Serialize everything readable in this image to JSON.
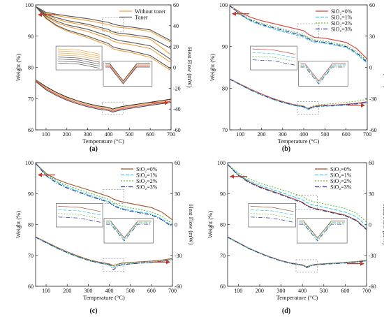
{
  "chart_data": [
    {
      "panel": "(a)",
      "type": "line",
      "xlabel": "Temperature (°C)",
      "ylabel_left": "Weight (%)",
      "ylabel_right": "Heat Flow (mW)",
      "xlim": [
        50,
        700
      ],
      "ylim_left": [
        60,
        100
      ],
      "ylim_right": [
        -60,
        60
      ],
      "xticks": [
        100,
        200,
        300,
        400,
        500,
        600,
        700
      ],
      "yticks_left": [
        60,
        70,
        80,
        90,
        100
      ],
      "yticks_right": [
        -60,
        -40,
        -20,
        0,
        20,
        40,
        60
      ],
      "legend": [
        "Without toner",
        "Toner"
      ],
      "legend_position": "top-right",
      "tga_x": [
        50,
        100,
        150,
        200,
        300,
        400,
        420,
        450,
        500,
        600,
        700
      ],
      "tga_series": [
        {
          "color": "#f0a040",
          "legend_index": 0,
          "values": [
            99.5,
            97.3,
            96.6,
            96.0,
            95.0,
            93.7,
            93.2,
            92.8,
            92.5,
            91.5,
            88.0
          ]
        },
        {
          "color": "#f0a040",
          "values": [
            99.5,
            96.8,
            95.4,
            94.5,
            93.3,
            91.5,
            90.8,
            90.3,
            90.0,
            89.0,
            84.0
          ]
        },
        {
          "color": "#f0a040",
          "values": [
            99.5,
            96.2,
            94.3,
            93.1,
            91.5,
            89.2,
            88.4,
            87.8,
            87.4,
            86.0,
            81.5
          ]
        },
        {
          "color": "#f0a040",
          "values": [
            99.5,
            95.6,
            93.2,
            91.6,
            89.5,
            87.0,
            86.0,
            85.4,
            84.9,
            83.2,
            79.0
          ]
        },
        {
          "color": "#555555",
          "legend_index": 1,
          "values": [
            99.5,
            97.6,
            97.0,
            96.5,
            95.6,
            94.4,
            93.9,
            93.4,
            93.0,
            92.0,
            88.5
          ]
        },
        {
          "color": "#555555",
          "values": [
            99.5,
            97.0,
            95.9,
            95.0,
            93.8,
            92.1,
            91.4,
            90.9,
            90.6,
            89.6,
            86.0
          ]
        },
        {
          "color": "#555555",
          "values": [
            99.5,
            96.5,
            94.8,
            93.6,
            92.2,
            90.0,
            89.2,
            88.6,
            88.1,
            86.9,
            82.5
          ]
        },
        {
          "color": "#555555",
          "values": [
            99.5,
            95.8,
            93.5,
            92.0,
            90.0,
            87.6,
            86.6,
            86.0,
            85.4,
            83.8,
            79.5
          ]
        }
      ],
      "dsc_x": [
        50,
        100,
        150,
        200,
        250,
        300,
        350,
        400,
        420,
        440,
        460,
        500,
        550,
        600,
        650,
        700
      ],
      "dsc_series": [
        {
          "color": "#222222",
          "values": [
            -12,
            -18.5,
            -24,
            -28.5,
            -32,
            -34.8,
            -37,
            -38.4,
            -40,
            -38.8,
            -37.8,
            -36.5,
            -35,
            -33.5,
            -32,
            -30.5
          ]
        },
        {
          "color": "#f0a040",
          "values": [
            -12.5,
            -19.5,
            -25,
            -29.5,
            -33,
            -35.8,
            -38,
            -39.4,
            -41,
            -39.8,
            -38.8,
            -37.5,
            -36,
            -34.5,
            -33,
            -31.5
          ]
        },
        {
          "color": "#e05050",
          "values": [
            -13,
            -20.5,
            -26,
            -30.5,
            -34,
            -36.8,
            -39,
            -40.4,
            -42,
            -40.8,
            -39.8,
            -38.5,
            -37,
            -35.5,
            -34,
            -32.5
          ]
        },
        {
          "color": "#444444",
          "values": [
            -13.5,
            -21.5,
            -27,
            -31.5,
            -35,
            -37.8,
            -40,
            -41.4,
            -43,
            -41.8,
            -40.8,
            -39.5,
            -38,
            -36.5,
            -35,
            -33.5
          ]
        }
      ]
    },
    {
      "panel": "(b)",
      "type": "line",
      "xlabel": "Temperature (°C)",
      "ylabel_left": "Weight (%)",
      "ylabel_right": "Heat Flow (mW)",
      "xlim": [
        50,
        700
      ],
      "ylim_left": [
        70,
        100
      ],
      "ylim_right": [
        -60,
        60
      ],
      "xticks": [
        100,
        200,
        300,
        400,
        500,
        600,
        700
      ],
      "yticks_left": [
        70,
        80,
        90,
        100
      ],
      "yticks_right": [
        -60,
        -30,
        0,
        30,
        60
      ],
      "legend": [
        "SiO₂=0%",
        "SiO₂=1%",
        "SiO₂=2%",
        "SiO₂=3%"
      ],
      "legend_position": "top-right",
      "tga_x": [
        50,
        100,
        150,
        200,
        300,
        400,
        420,
        450,
        500,
        600,
        650,
        700
      ],
      "tga_series": [
        {
          "color": "#e03c3c",
          "dash": "",
          "legend_index": 0,
          "values": [
            99.8,
            98.2,
            97.0,
            96.2,
            95.0,
            93.8,
            93.0,
            92.2,
            92.0,
            91.0,
            89.5,
            87.0
          ]
        },
        {
          "color": "#3cc8e6",
          "dash": "5,2",
          "legend_index": 1,
          "values": [
            99.8,
            97.6,
            96.1,
            95.1,
            93.6,
            92.3,
            91.6,
            91.0,
            90.8,
            89.8,
            88.2,
            86.0
          ]
        },
        {
          "color": "#5cbf3c",
          "dash": "2,2",
          "legend_index": 2,
          "values": [
            99.8,
            97.9,
            96.5,
            95.6,
            94.2,
            92.9,
            92.2,
            91.6,
            91.3,
            90.3,
            88.8,
            86.5
          ]
        },
        {
          "color": "#2a3a9a",
          "dash": "6,2,1,2",
          "legend_index": 3,
          "values": [
            99.8,
            97.7,
            96.3,
            95.3,
            93.9,
            92.6,
            91.9,
            91.3,
            91.0,
            90.0,
            88.5,
            86.2
          ]
        }
      ],
      "dsc_x": [
        50,
        100,
        150,
        200,
        250,
        300,
        350,
        400,
        420,
        440,
        460,
        500,
        550,
        600,
        650,
        700
      ],
      "dsc_series": [
        {
          "color": "#e03c3c",
          "dash": "",
          "values": [
            -11,
            -16,
            -21,
            -25.5,
            -29.5,
            -32.8,
            -35.5,
            -37.2,
            -39.5,
            -38,
            -37,
            -36.4,
            -36,
            -35.4,
            -34.4,
            -33
          ]
        },
        {
          "color": "#3cc8e6",
          "dash": "5,2",
          "values": [
            -11.5,
            -16.8,
            -22,
            -26.5,
            -30.5,
            -33.8,
            -36.5,
            -38.2,
            -40.5,
            -39,
            -38,
            -37.4,
            -37,
            -36.4,
            -35.4,
            -34
          ]
        },
        {
          "color": "#5cbf3c",
          "dash": "2,2",
          "values": [
            -11,
            -16.4,
            -21.5,
            -26,
            -30,
            -33.2,
            -35.8,
            -37.4,
            -39.2,
            -37.4,
            -36.2,
            -35.4,
            -34.6,
            -33.6,
            -32.3,
            -30.8
          ]
        },
        {
          "color": "#2a3a9a",
          "dash": "6,2,1,2",
          "values": [
            -11.3,
            -16.6,
            -21.8,
            -26.2,
            -30.2,
            -33.5,
            -36.1,
            -37.8,
            -40,
            -38.5,
            -37.5,
            -36.9,
            -36.5,
            -35.9,
            -34.9,
            -33.5
          ]
        }
      ]
    },
    {
      "panel": "(c)",
      "type": "line",
      "xlabel": "Temperature (°C)",
      "ylabel_left": "Weight (%)",
      "ylabel_right": "Heat Flow (mW)",
      "xlim": [
        50,
        700
      ],
      "ylim_left": [
        60,
        100
      ],
      "ylim_right": [
        -60,
        60
      ],
      "xticks": [
        100,
        200,
        300,
        400,
        500,
        600,
        700
      ],
      "yticks_left": [
        60,
        70,
        80,
        90,
        100
      ],
      "yticks_right": [
        -60,
        -30,
        0,
        30,
        60
      ],
      "legend": [
        "SiO₂=0%",
        "SiO₂=1%",
        "SiO₂=2%",
        "SiO₂=3%"
      ],
      "legend_position": "top-right",
      "tga_x": [
        50,
        100,
        150,
        200,
        300,
        400,
        420,
        450,
        500,
        600,
        650,
        700
      ],
      "tga_series": [
        {
          "color": "#a0522d",
          "dash": "",
          "legend_index": 0,
          "values": [
            99.8,
            96.5,
            94.6,
            93.3,
            91.2,
            89.0,
            88.2,
            87.5,
            86.8,
            85.5,
            84.0,
            81.5
          ]
        },
        {
          "color": "#3cc8e6",
          "dash": "5,2",
          "legend_index": 1,
          "values": [
            99.8,
            96.0,
            93.7,
            92.1,
            89.6,
            87.4,
            86.4,
            85.4,
            84.6,
            83.4,
            81.8,
            79.5
          ]
        },
        {
          "color": "#5cbf3c",
          "dash": "2,2",
          "legend_index": 2,
          "values": [
            99.8,
            96.3,
            94.1,
            92.6,
            90.3,
            88.1,
            87.1,
            86.1,
            85.4,
            84.1,
            82.6,
            80.2
          ]
        },
        {
          "color": "#2a3a9a",
          "dash": "6,2,1,2",
          "legend_index": 3,
          "values": [
            99.8,
            95.8,
            93.4,
            91.8,
            89.3,
            87.1,
            86.1,
            85.1,
            84.3,
            83.1,
            81.5,
            79.2
          ]
        }
      ],
      "dsc_x": [
        50,
        100,
        150,
        200,
        250,
        300,
        350,
        400,
        420,
        440,
        460,
        500,
        550,
        600,
        650,
        700
      ],
      "dsc_series": [
        {
          "color": "#a0522d",
          "dash": "",
          "values": [
            -12,
            -17,
            -22,
            -26.5,
            -30.5,
            -34,
            -36.5,
            -38.2,
            -40,
            -38.5,
            -37.5,
            -36.8,
            -36.2,
            -35.5,
            -34.5,
            -33
          ]
        },
        {
          "color": "#3cc8e6",
          "dash": "5,2",
          "values": [
            -12.5,
            -17.8,
            -23,
            -27.5,
            -31.5,
            -35,
            -37.5,
            -39.2,
            -42,
            -40,
            -39,
            -38.2,
            -37.5,
            -36.8,
            -35.8,
            -34
          ]
        },
        {
          "color": "#5cbf3c",
          "dash": "2,2",
          "values": [
            -12.2,
            -17.4,
            -22.5,
            -27,
            -31,
            -34.5,
            -37,
            -38.7,
            -41,
            -39.3,
            -38.3,
            -37.6,
            -37,
            -36.2,
            -35.2,
            -33.7
          ]
        },
        {
          "color": "#2a3a9a",
          "dash": "6,2,1,2",
          "values": [
            -12.4,
            -17.6,
            -22.8,
            -27.3,
            -31.3,
            -34.8,
            -37.3,
            -39,
            -44,
            -40.5,
            -39.2,
            -38.3,
            -37.5,
            -36.8,
            -35.8,
            -34
          ]
        }
      ]
    },
    {
      "panel": "(d)",
      "type": "line",
      "xlabel": "Temperature (°C)",
      "ylabel_left": "Weight (%)",
      "ylabel_right": "Heat Flow (mW)",
      "xlim": [
        50,
        700
      ],
      "ylim_left": [
        60,
        100
      ],
      "ylim_right": [
        -60,
        60
      ],
      "xticks": [
        100,
        200,
        300,
        400,
        500,
        600,
        700
      ],
      "yticks_left": [
        60,
        70,
        80,
        90,
        100
      ],
      "yticks_right": [
        -60,
        -30,
        0,
        30,
        60
      ],
      "legend": [
        "SiO₂=0%",
        "SiO₂=1%",
        "SiO₂=2%",
        "SiO₂=3%"
      ],
      "legend_position": "top-right",
      "tga_x": [
        50,
        100,
        150,
        200,
        300,
        400,
        420,
        450,
        500,
        600,
        650,
        700
      ],
      "tga_series": [
        {
          "color": "#a0522d",
          "dash": "",
          "legend_index": 0,
          "values": [
            99.5,
            96.0,
            93.8,
            92.2,
            89.8,
            87.2,
            86.2,
            85.3,
            84.6,
            83.0,
            81.5,
            78.5
          ]
        },
        {
          "color": "#3cc8e6",
          "dash": "5,2",
          "legend_index": 1,
          "values": [
            99.5,
            96.2,
            94.2,
            92.7,
            90.4,
            88.0,
            87.1,
            86.3,
            85.6,
            84.0,
            82.6,
            79.5
          ]
        },
        {
          "color": "#5cbf3c",
          "dash": "2,2",
          "legend_index": 2,
          "values": [
            99.5,
            96.6,
            94.8,
            93.4,
            91.3,
            89.1,
            88.2,
            87.4,
            86.7,
            85.2,
            83.8,
            80.8
          ]
        },
        {
          "color": "#2a3a9a",
          "dash": "6,2,1,2",
          "legend_index": 3,
          "values": [
            99.5,
            95.8,
            93.6,
            92.0,
            89.6,
            87.0,
            86.0,
            85.1,
            84.4,
            82.8,
            81.3,
            78.3
          ]
        }
      ],
      "dsc_x": [
        50,
        100,
        150,
        200,
        250,
        300,
        350,
        400,
        420,
        440,
        460,
        500,
        550,
        600,
        650,
        700
      ],
      "dsc_series": [
        {
          "color": "#a0522d",
          "dash": "",
          "values": [
            -12,
            -17.5,
            -23,
            -27.5,
            -31.5,
            -35,
            -37.5,
            -39.2,
            -41,
            -39.5,
            -38.7,
            -38,
            -37.4,
            -36.8,
            -36,
            -34.8
          ]
        },
        {
          "color": "#3cc8e6",
          "dash": "5,2",
          "values": [
            -12.3,
            -17.8,
            -23.3,
            -27.8,
            -31.8,
            -35.3,
            -37.8,
            -39.5,
            -41.5,
            -40,
            -39.2,
            -38.5,
            -37.9,
            -37.3,
            -36.5,
            -35.3
          ]
        },
        {
          "color": "#5cbf3c",
          "dash": "2,2",
          "values": [
            -12.6,
            -18.1,
            -23.6,
            -28.1,
            -32.1,
            -35.6,
            -38.1,
            -39.8,
            -41.2,
            -39.8,
            -39,
            -38.3,
            -37.6,
            -37,
            -36.2,
            -35
          ]
        },
        {
          "color": "#2a3a9a",
          "dash": "6,2,1,2",
          "values": [
            -12.4,
            -17.9,
            -23.4,
            -27.9,
            -31.9,
            -35.4,
            -37.9,
            -39.6,
            -42,
            -40.2,
            -39.3,
            -38.6,
            -38,
            -37.4,
            -36.6,
            -35.4
          ]
        }
      ]
    }
  ]
}
